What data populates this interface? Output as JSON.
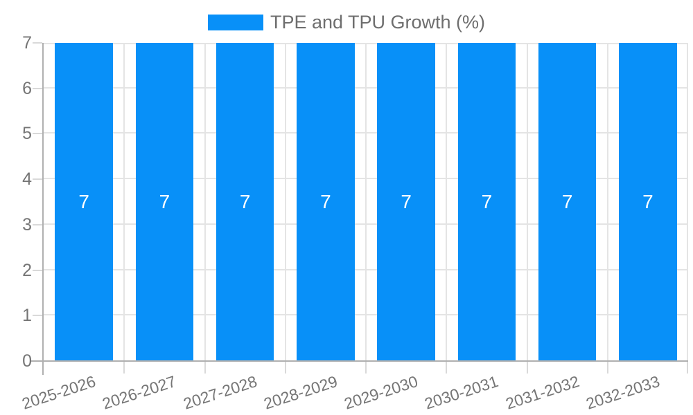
{
  "chart_data": {
    "type": "bar",
    "title": "TPE and TPU Growth (%)",
    "categories": [
      "2025-2026",
      "2026-2027",
      "2027-2028",
      "2028-2029",
      "2029-2030",
      "2030-2031",
      "2031-2032",
      "2032-2033"
    ],
    "series": [
      {
        "name": "TPE and TPU Growth (%)",
        "values": [
          7,
          7,
          7,
          7,
          7,
          7,
          7,
          7
        ]
      }
    ],
    "bar_value_labels": [
      "7",
      "7",
      "7",
      "7",
      "7",
      "7",
      "7",
      "7"
    ],
    "xlabel": "",
    "ylabel": "",
    "ylim": [
      0,
      7
    ],
    "yticks": [
      0,
      1,
      2,
      3,
      4,
      5,
      6,
      7
    ],
    "grid": true,
    "legend_position": "top"
  },
  "legend": {
    "label": "TPE and TPU Growth (%)"
  },
  "colors": {
    "bar": "#0890f8",
    "grid": "#e4e4e4",
    "axis": "#b0b0b0",
    "tick": "#d9d9d9",
    "tick_text": "#757575",
    "legend_text": "#6e6e6e",
    "bar_label_text": "#ffffff",
    "background": "#ffffff"
  }
}
